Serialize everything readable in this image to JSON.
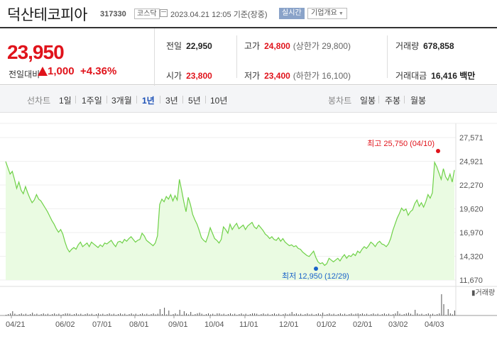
{
  "header": {
    "name": "덕산테코피아",
    "code": "317330",
    "market": "코스닥",
    "datetime": "2023.04.21 12:05 기준(장중)",
    "realtime": "실시간",
    "company_overview": "기업개요"
  },
  "quote": {
    "price": "23,950",
    "change_label": "전일대비",
    "change_amount": "1,000",
    "change_pct": "+4.36%",
    "direction": "up",
    "prev_close_label": "전일",
    "prev_close": "22,950",
    "high_label": "고가",
    "high": "24,800",
    "upper_limit": "(상한가 29,800)",
    "volume_label": "거래량",
    "volume": "678,858",
    "open_label": "시가",
    "open": "23,800",
    "low_label": "저가",
    "low": "23,400",
    "lower_limit": "(하한가 16,100)",
    "trade_value_label": "거래대금",
    "trade_value": "16,416 백만"
  },
  "periods": {
    "line_label": "선차트",
    "line_items": [
      "1일",
      "1주일",
      "3개월",
      "1년",
      "3년",
      "5년",
      "10년"
    ],
    "active": "1년",
    "candle_label": "봉차트",
    "candle_items": [
      "일봉",
      "주봉",
      "월봉"
    ]
  },
  "colors": {
    "up": "#e0131b",
    "area_line": "#6fd148",
    "area_fill": "#eafbe2",
    "max_marker": "#e0131b",
    "min_marker": "#1a63c9"
  },
  "chart_data": {
    "type": "area",
    "title": "",
    "y_ticks": [
      "27,571",
      "24,921",
      "22,270",
      "19,620",
      "16,970",
      "14,320",
      "11,670"
    ],
    "ylim": [
      11670,
      27571
    ],
    "x_ticks": [
      "04/21",
      "06/02",
      "07/01",
      "08/01",
      "09/01",
      "10/04",
      "11/01",
      "12/01",
      "01/02",
      "02/01",
      "03/02",
      "04/03"
    ],
    "annotations": {
      "max_label": "최고 25,750 (04/10)",
      "min_label": "최저 12,950 (12/29)"
    },
    "volume_label": "거래량",
    "series": [
      {
        "values": [
          24900,
          24200,
          23500,
          23800,
          22900,
          21900,
          22600,
          21700,
          21300,
          22100,
          21400,
          20800,
          20300,
          20600,
          21200,
          20700,
          20500,
          20100,
          19700,
          19300,
          18800,
          18300,
          17900,
          17400,
          17000,
          17300,
          16800,
          15900,
          15200,
          14800,
          15100,
          15300,
          15100,
          15600,
          15900,
          15400,
          15600,
          15800,
          15400,
          15900,
          15700,
          15500,
          15300,
          15600,
          15400,
          15800,
          15700,
          15900,
          16100,
          15700,
          15400,
          15900,
          16000,
          15800,
          16200,
          16000,
          16300,
          16500,
          16200,
          15900,
          16100,
          16200,
          16900,
          16600,
          16100,
          15900,
          15700,
          15500,
          15800,
          16600,
          20100,
          20700,
          20400,
          21000,
          20700,
          21200,
          20500,
          21100,
          20600,
          22900,
          21700,
          20400,
          19300,
          20900,
          20100,
          19000,
          18400,
          17900,
          17200,
          16400,
          16100,
          15900,
          16600,
          17500,
          16900,
          16300,
          16100,
          15800,
          16200,
          17600,
          17300,
          16900,
          17900,
          17300,
          17700,
          18000,
          17400,
          17600,
          17800,
          17300,
          17700,
          17900,
          18100,
          17600,
          17400,
          17800,
          17500,
          17200,
          16800,
          16600,
          16300,
          16500,
          16200,
          16100,
          16400,
          16000,
          16300,
          15900,
          15700,
          15500,
          15600,
          15400,
          15500,
          15200,
          15100,
          14800,
          14600,
          14400,
          14300,
          14600,
          14900,
          14200,
          13700,
          13500,
          13600,
          13300,
          13500,
          14100,
          13900,
          13700,
          13900,
          14100,
          13800,
          14200,
          14500,
          14100,
          14400,
          14300,
          14600,
          14400,
          14900,
          14700,
          15100,
          15400,
          15200,
          15500,
          15900,
          15700,
          15400,
          15800,
          16000,
          15700,
          15600,
          15400,
          15700,
          16300,
          17200,
          17900,
          18600,
          19100,
          19700,
          19400,
          19600,
          18900,
          19300,
          19500,
          20200,
          20600,
          19900,
          20300,
          19800,
          20400,
          21200,
          20800,
          21400,
          24800,
          24300,
          23600,
          22900,
          24100,
          23200,
          22800,
          23500,
          22600,
          23950
        ]
      }
    ]
  }
}
